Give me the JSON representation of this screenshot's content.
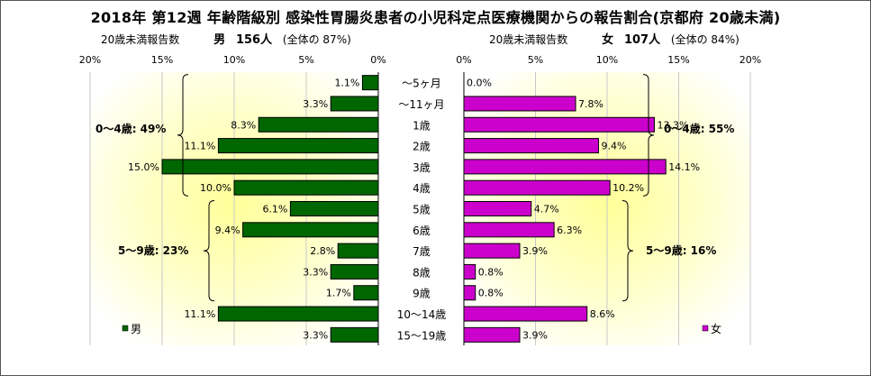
{
  "title": "2018年 第12週 年齢階級別 感染性胃腸炎患者の小児科定点医療機関からの報告割合(京都府 20歳未満)",
  "subtitles": {
    "left": {
      "label": "20歳未満報告数",
      "sex": "男",
      "count": "156人",
      "share": "(全体の 87%)"
    },
    "right": {
      "label": "20歳未満報告数",
      "sex": "女",
      "count": "107人",
      "share": "(全体の 84%)"
    }
  },
  "chart_data": [
    {
      "type": "bar",
      "orientation": "horizontal",
      "direction": "reversed",
      "categories": [
        "～5ヶ月",
        "～11ヶ月",
        "1歳",
        "2歳",
        "3歳",
        "4歳",
        "5歳",
        "6歳",
        "7歳",
        "8歳",
        "9歳",
        "10～14歳",
        "15～19歳"
      ],
      "series": [
        {
          "name": "男",
          "values": [
            1.1,
            3.3,
            8.3,
            11.1,
            15.0,
            10.0,
            6.1,
            9.4,
            2.8,
            3.3,
            1.7,
            11.1,
            3.3
          ],
          "color": "#006600"
        }
      ],
      "data_labels": [
        "1.1%",
        "3.3%",
        "8.3%",
        "11.1%",
        "15.0%",
        "10.0%",
        "6.1%",
        "9.4%",
        "2.8%",
        "3.3%",
        "1.7%",
        "11.1%",
        "3.3%"
      ],
      "xlim": [
        0,
        20
      ],
      "x_ticks": [
        "20%",
        "15%",
        "10%",
        "5%",
        "0%"
      ],
      "annotations": [
        "0～4歳: 49%",
        "5～9歳: 23%"
      ],
      "legend": "bottom-left"
    },
    {
      "type": "bar",
      "orientation": "horizontal",
      "categories": [
        "～5ヶ月",
        "～11ヶ月",
        "1歳",
        "2歳",
        "3歳",
        "4歳",
        "5歳",
        "6歳",
        "7歳",
        "8歳",
        "9歳",
        "10～14歳",
        "15～19歳"
      ],
      "series": [
        {
          "name": "女",
          "values": [
            0.0,
            7.8,
            13.3,
            9.4,
            14.1,
            10.2,
            4.7,
            6.3,
            3.9,
            0.8,
            0.8,
            8.6,
            3.9
          ],
          "color": "#CC00CC"
        }
      ],
      "data_labels": [
        "0.0%",
        "7.8%",
        "13.3%",
        "9.4%",
        "14.1%",
        "10.2%",
        "4.7%",
        "6.3%",
        "3.9%",
        "0.8%",
        "0.8%",
        "8.6%",
        "3.9%"
      ],
      "xlim": [
        0,
        20
      ],
      "x_ticks": [
        "0%",
        "5%",
        "10%",
        "15%",
        "20%"
      ],
      "annotations": [
        "0～4歳: 55%",
        "5～9歳: 16%"
      ],
      "legend": "bottom-right"
    }
  ]
}
